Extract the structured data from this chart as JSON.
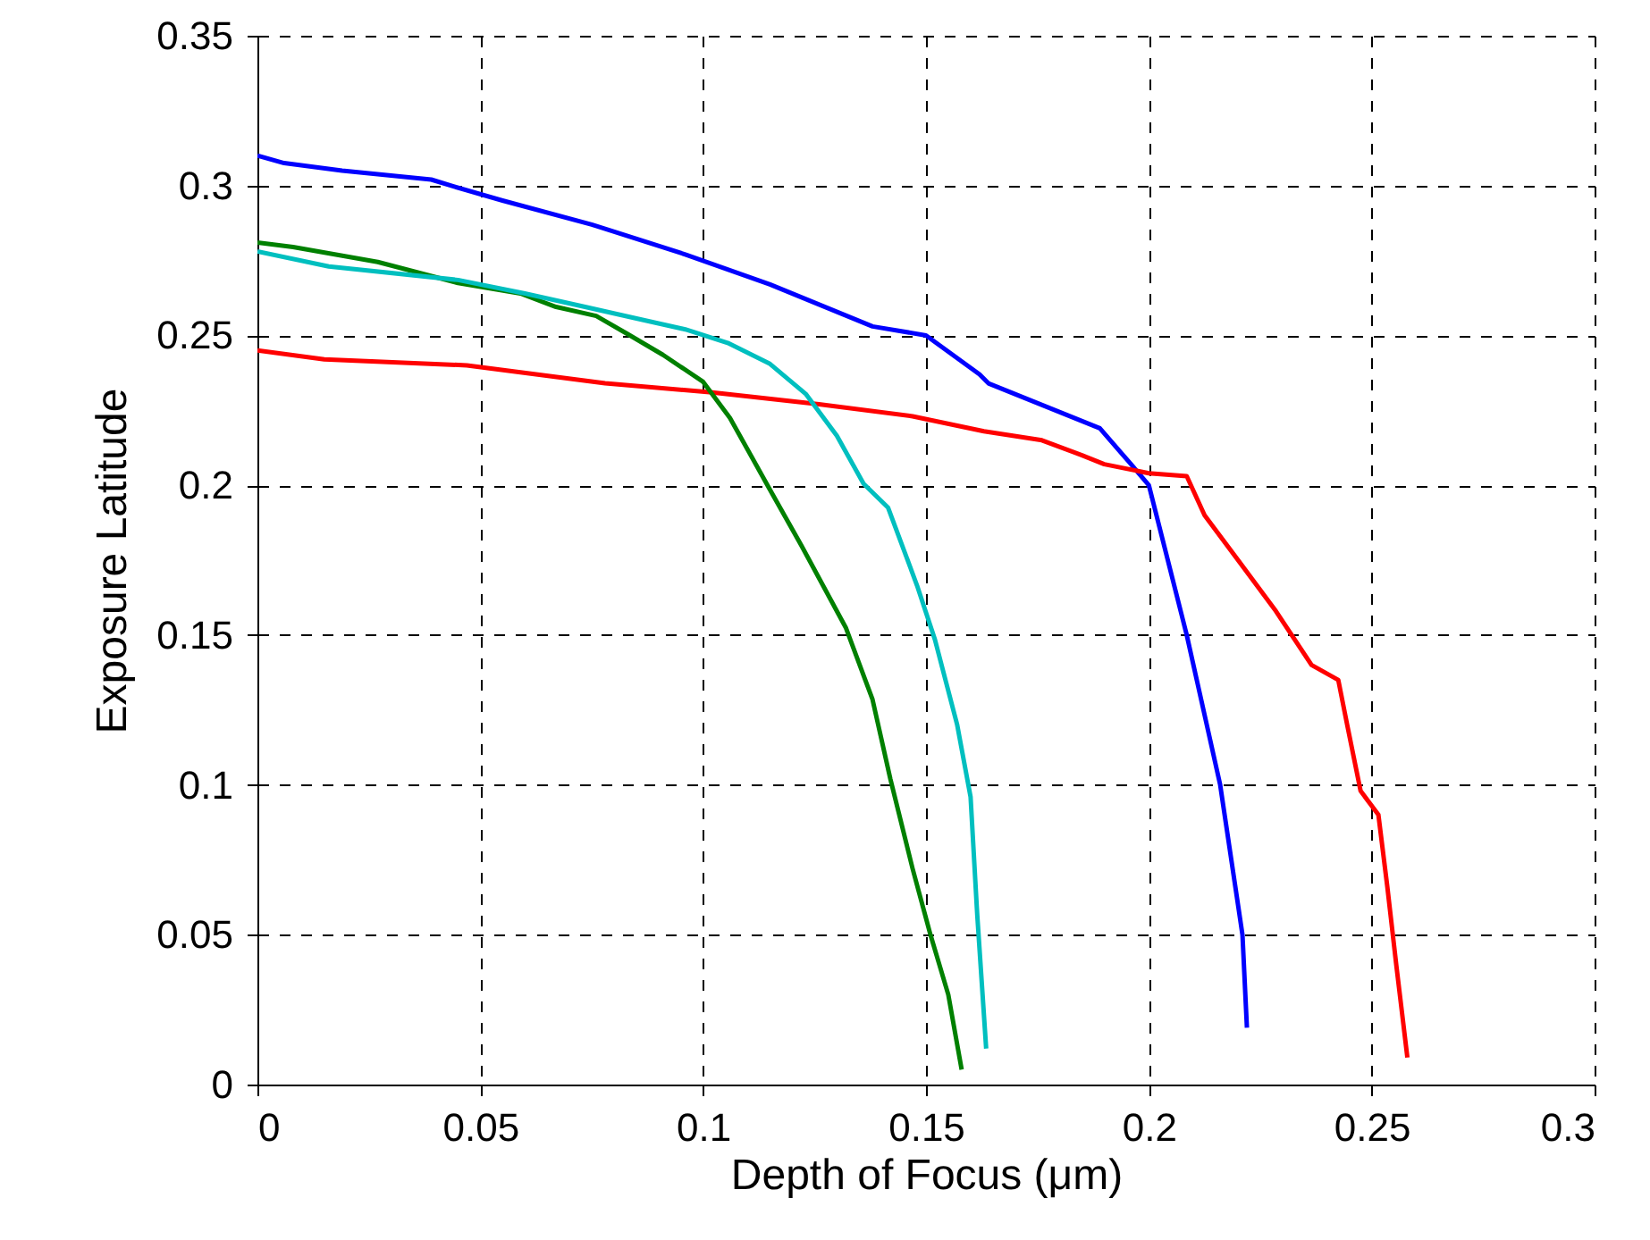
{
  "chart_data": {
    "type": "line",
    "xlabel": "Depth of Focus (μm)",
    "ylabel": "Exposure Latitude",
    "xlim": [
      0,
      0.3
    ],
    "xticks": [
      0,
      0.05,
      0.1,
      0.15,
      0.2,
      0.25,
      0.3
    ],
    "ylim": [
      0,
      0.35
    ],
    "yticks": [
      0,
      0.05,
      0.1,
      0.15,
      0.2,
      0.25,
      0.3,
      0.35
    ],
    "grid": true,
    "line_style": "solid",
    "series": [
      {
        "color": "#0000ff",
        "x": [
          0,
          0.006,
          0.019,
          0.039,
          0.044,
          0.055,
          0.075,
          0.096,
          0.115,
          0.138,
          0.15,
          0.162,
          0.164,
          0.189,
          0.196,
          0.2,
          0.2085,
          0.216,
          0.221,
          0.222
        ],
        "values": [
          0.31,
          0.3075,
          0.305,
          0.302,
          0.2997,
          0.295,
          0.287,
          0.277,
          0.267,
          0.253,
          0.25,
          0.237,
          0.234,
          0.219,
          0.207,
          0.2,
          0.15,
          0.1,
          0.05,
          0.019
        ]
      },
      {
        "color": "#ff0000",
        "x": [
          0,
          0.015,
          0.047,
          0.078,
          0.102,
          0.126,
          0.147,
          0.163,
          0.176,
          0.185,
          0.19,
          0.2,
          0.2085,
          0.2125,
          0.2205,
          0.2285,
          0.2365,
          0.2425,
          0.2445,
          0.2475,
          0.2515,
          0.2535,
          0.2555,
          0.258
        ],
        "values": [
          0.245,
          0.242,
          0.24,
          0.234,
          0.231,
          0.227,
          0.223,
          0.218,
          0.215,
          0.21,
          0.207,
          0.204,
          0.203,
          0.19,
          0.174,
          0.158,
          0.14,
          0.135,
          0.12,
          0.098,
          0.09,
          0.066,
          0.04,
          0.009
        ]
      },
      {
        "color": "#008000",
        "x": [
          0,
          0.008,
          0.027,
          0.045,
          0.059,
          0.067,
          0.076,
          0.083,
          0.091,
          0.1,
          0.106,
          0.115,
          0.122,
          0.132,
          0.138,
          0.142,
          0.147,
          0.151,
          0.155,
          0.158
        ],
        "values": [
          0.281,
          0.2795,
          0.2745,
          0.2675,
          0.264,
          0.2595,
          0.2565,
          0.2505,
          0.2435,
          0.2345,
          0.2225,
          0.1985,
          0.18,
          0.1525,
          0.1285,
          0.102,
          0.072,
          0.05,
          0.03,
          0.005
        ]
      },
      {
        "color": "#00bfbf",
        "x": [
          0,
          0.016,
          0.045,
          0.06,
          0.0735,
          0.0855,
          0.096,
          0.1055,
          0.115,
          0.123,
          0.13,
          0.136,
          0.1415,
          0.148,
          0.152,
          0.157,
          0.16,
          0.1615,
          0.1635
        ],
        "values": [
          0.278,
          0.273,
          0.2685,
          0.264,
          0.2595,
          0.2555,
          0.252,
          0.2475,
          0.2405,
          0.2305,
          0.2165,
          0.2005,
          0.1925,
          0.1665,
          0.1485,
          0.12,
          0.096,
          0.0565,
          0.012
        ]
      }
    ]
  }
}
